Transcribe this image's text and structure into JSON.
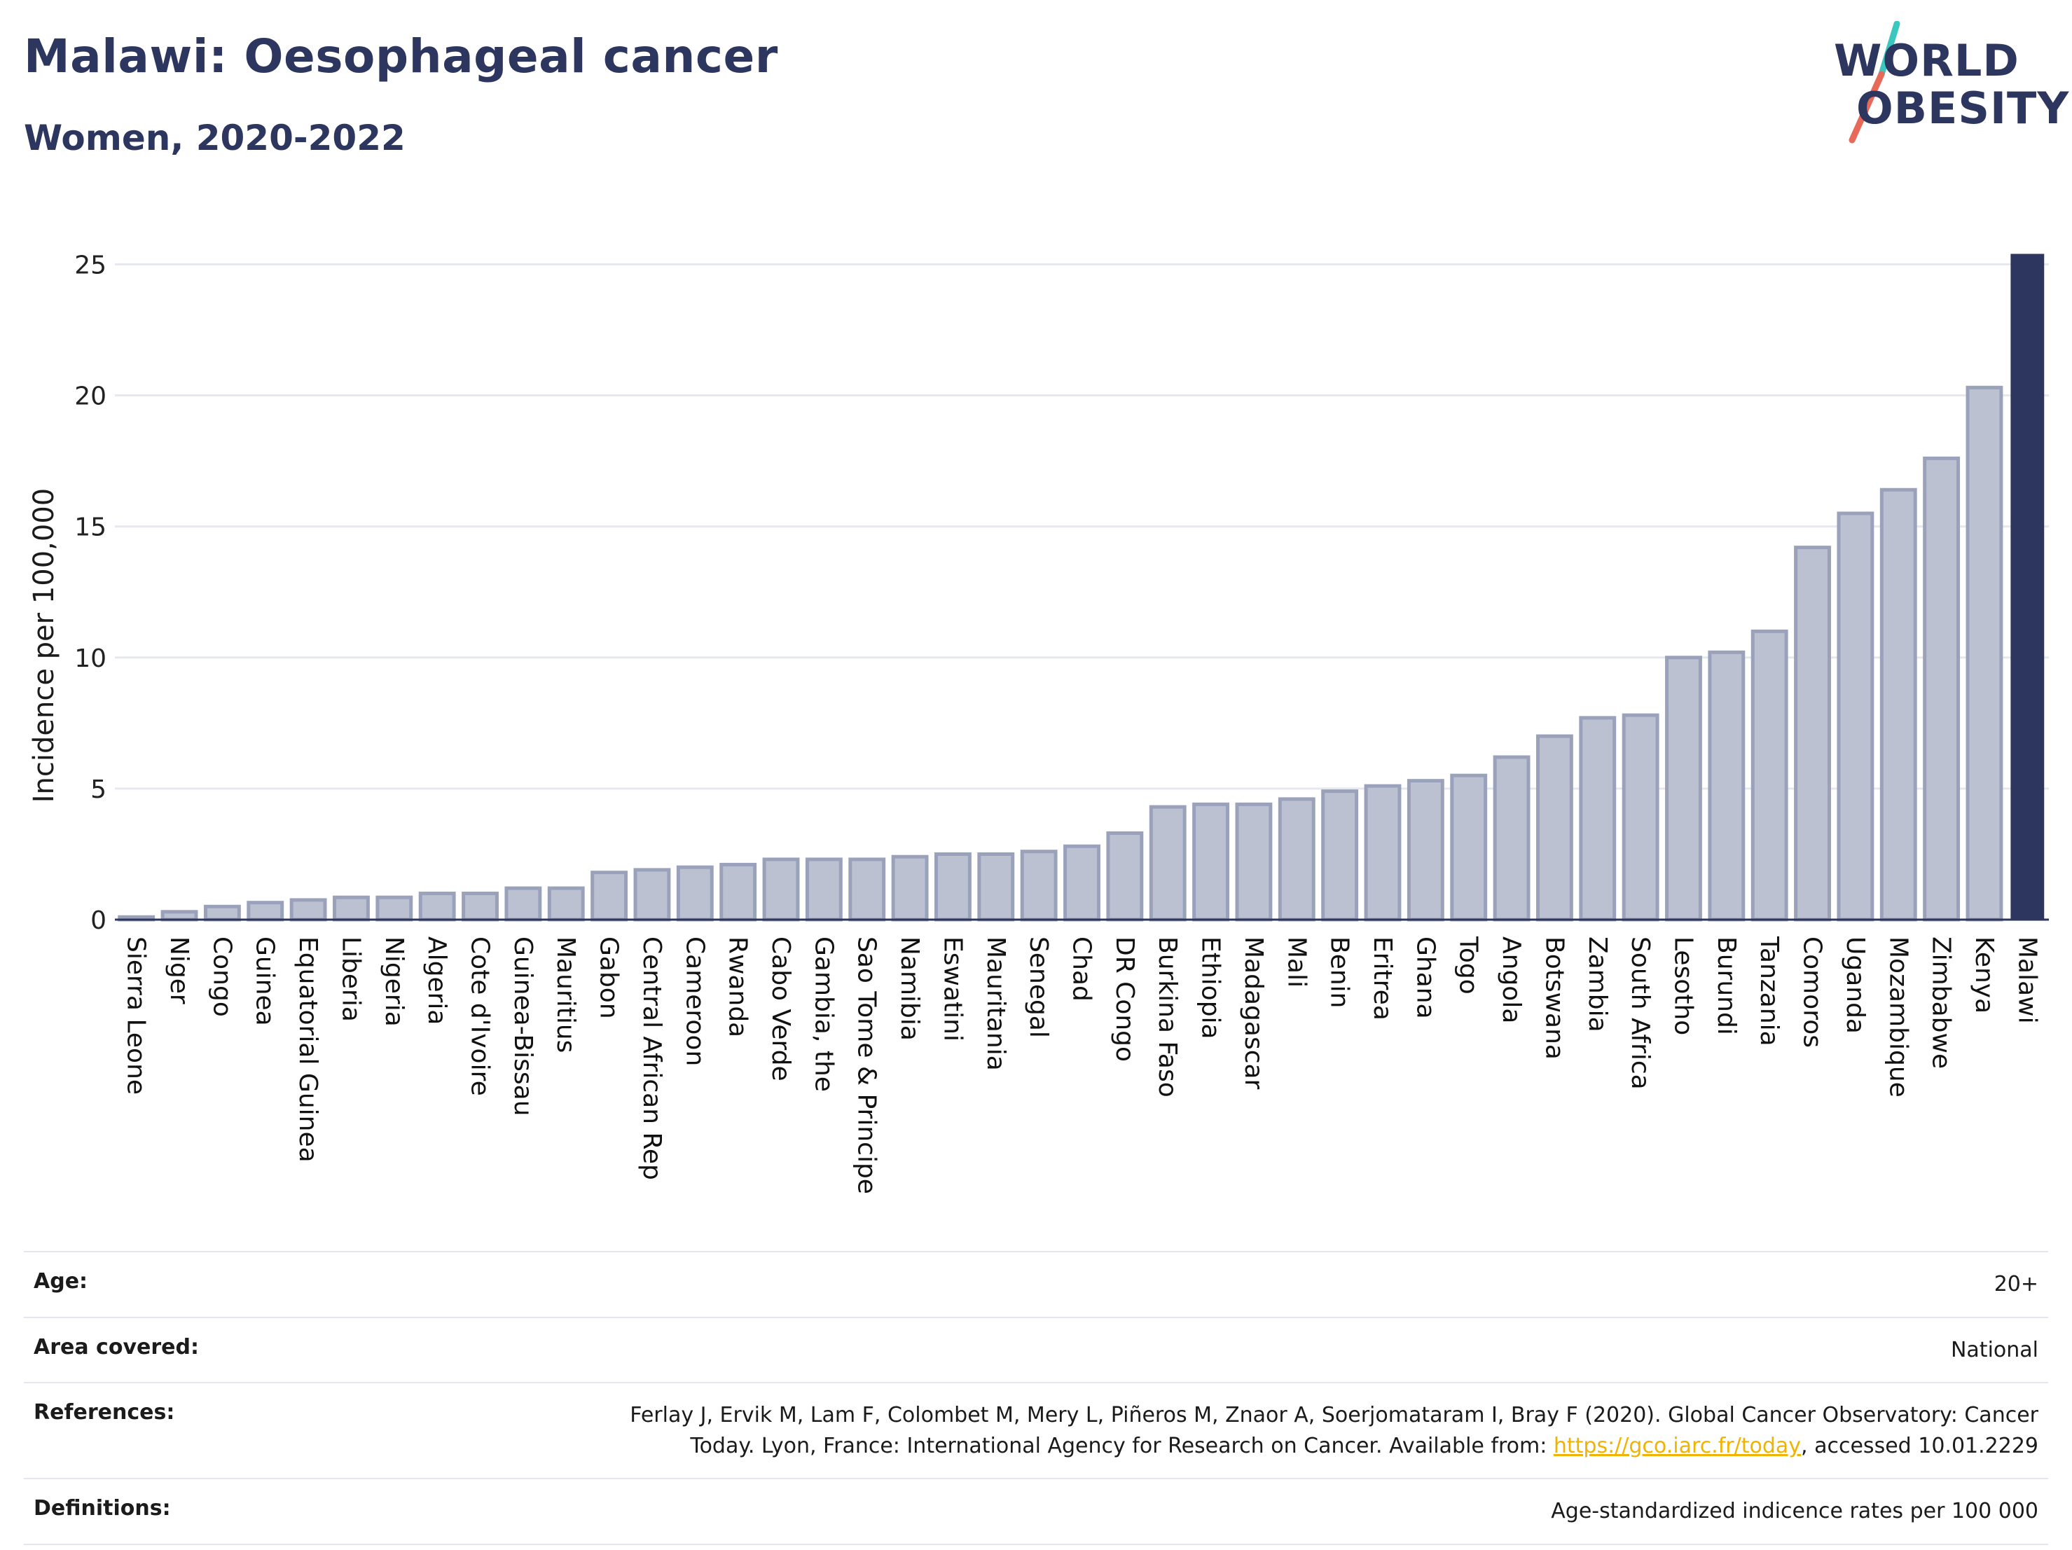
{
  "header": {
    "title": "Malawi: Oesophageal cancer",
    "subtitle": "Women, 2020-2022"
  },
  "logo": {
    "line1": "WORLD",
    "line2": "OBESITY",
    "slash_color_top": "#3cc6c0",
    "slash_color_bottom": "#e8685a"
  },
  "colors": {
    "bar_fill": "#bcc1d1",
    "bar_stroke": "#9aa1bb",
    "highlight": "#2d365e",
    "grid": "#e6e8ef",
    "text": "#2d365e"
  },
  "chart_data": {
    "type": "bar",
    "ylabel": "Incidence per 100,000",
    "xlabel": "",
    "ylim": [
      0,
      26
    ],
    "yticks": [
      0,
      5,
      10,
      15,
      20,
      25
    ],
    "grid": true,
    "highlight": "Malawi",
    "categories": [
      "Sierra Leone",
      "Niger",
      "Congo",
      "Guinea",
      "Equatorial Guinea",
      "Liberia",
      "Nigeria",
      "Algeria",
      "Cote d'Ivoire",
      "Guinea-Bissau",
      "Mauritius",
      "Gabon",
      "Central African Rep",
      "Cameroon",
      "Rwanda",
      "Cabo Verde",
      "Gambia, the",
      "Sao Tome & Principe",
      "Namibia",
      "Eswatini",
      "Mauritania",
      "Senegal",
      "Chad",
      "DR Congo",
      "Burkina Faso",
      "Ethiopia",
      "Madagascar",
      "Mali",
      "Benin",
      "Eritrea",
      "Ghana",
      "Togo",
      "Angola",
      "Botswana",
      "Zambia",
      "South Africa",
      "Lesotho",
      "Burundi",
      "Tanzania",
      "Comoros",
      "Uganda",
      "Mozambique",
      "Zimbabwe",
      "Kenya",
      "Malawi"
    ],
    "values": [
      0.1,
      0.3,
      0.5,
      0.65,
      0.75,
      0.85,
      0.85,
      1.0,
      1.0,
      1.2,
      1.2,
      1.8,
      1.9,
      2.0,
      2.1,
      2.3,
      2.3,
      2.3,
      2.4,
      2.5,
      2.5,
      2.6,
      2.8,
      3.3,
      4.3,
      4.4,
      4.4,
      4.6,
      4.9,
      5.1,
      5.3,
      5.5,
      6.2,
      7.0,
      7.7,
      7.8,
      10.0,
      10.2,
      11.0,
      14.2,
      15.5,
      16.4,
      17.6,
      20.3,
      25.4
    ]
  },
  "info": {
    "age_label": "Age:",
    "age_value": "20+",
    "area_label": "Area covered:",
    "area_value": "National",
    "references_label": "References:",
    "references_text_1": "Ferlay J, Ervik M, Lam F, Colombet M, Mery L, Piñeros M, Znaor A, Soerjomataram I, Bray F (2020). Global Cancer Observatory: Cancer",
    "references_text_2": "Today. Lyon, France: International Agency for Research on Cancer. Available from: ",
    "references_link": "https://gco.iarc.fr/today",
    "references_text_3": ", accessed 10.01.2229",
    "definitions_label": "Definitions:",
    "definitions_value": "Age-standardized indicence rates per 100 000"
  }
}
